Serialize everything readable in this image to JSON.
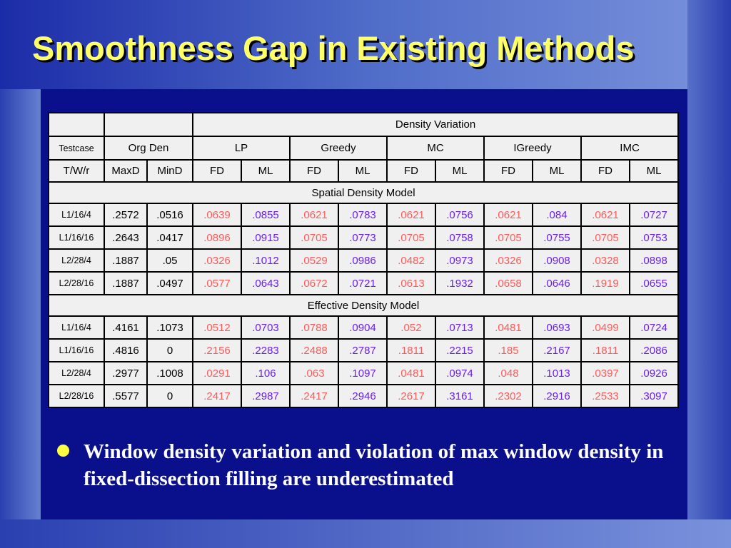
{
  "title": "Smoothness Gap in Existing Methods",
  "table": {
    "group_header": "Density Variation",
    "testcase_header": "Testcase",
    "org_header": "Org Den",
    "methods": [
      "LP",
      "Greedy",
      "MC",
      "IGreedy",
      "IMC"
    ],
    "first_col_header": "T/W/r",
    "org_cols": [
      "MaxD",
      "MinD"
    ],
    "sub_cols": [
      "FD",
      "ML"
    ],
    "sections": [
      {
        "title": "Spatial Density Model",
        "rows": [
          [
            "L1/16/4",
            ".2572",
            ".0516",
            ".0639",
            ".0855",
            ".0621",
            ".0783",
            ".0621",
            ".0756",
            ".0621",
            ".084",
            ".0621",
            ".0727"
          ],
          [
            "L1/16/16",
            ".2643",
            ".0417",
            ".0896",
            ".0915",
            ".0705",
            ".0773",
            ".0705",
            ".0758",
            ".0705",
            ".0755",
            ".0705",
            ".0753"
          ],
          [
            "L2/28/4",
            ".1887",
            ".05",
            ".0326",
            ".1012",
            ".0529",
            ".0986",
            ".0482",
            ".0973",
            ".0326",
            ".0908",
            ".0328",
            ".0898"
          ],
          [
            "L2/28/16",
            ".1887",
            ".0497",
            ".0577",
            ".0643",
            ".0672",
            ".0721",
            ".0613",
            ".1932",
            ".0658",
            ".0646",
            ".1919",
            ".0655"
          ]
        ]
      },
      {
        "title": "Effective Density Model",
        "rows": [
          [
            "L1/16/4",
            ".4161",
            ".1073",
            ".0512",
            ".0703",
            ".0788",
            ".0904",
            ".052",
            ".0713",
            ".0481",
            ".0693",
            ".0499",
            ".0724"
          ],
          [
            "L1/16/16",
            ".4816",
            "0",
            ".2156",
            ".2283",
            ".2488",
            ".2787",
            ".1811",
            ".2215",
            ".185",
            ".2167",
            ".1811",
            ".2086"
          ],
          [
            "L2/28/4",
            ".2977",
            ".1008",
            ".0291",
            ".106",
            ".063",
            ".1097",
            ".0481",
            ".0974",
            ".048",
            ".1013",
            ".0397",
            ".0926"
          ],
          [
            "L2/28/16",
            ".5577",
            "0",
            ".2417",
            ".2987",
            ".2417",
            ".2946",
            ".2617",
            ".3161",
            ".2302",
            ".2916",
            ".2533",
            ".3097"
          ]
        ]
      }
    ]
  },
  "bullet": "Window density variation and violation of max window density in fixed-dissection filling are underestimated"
}
